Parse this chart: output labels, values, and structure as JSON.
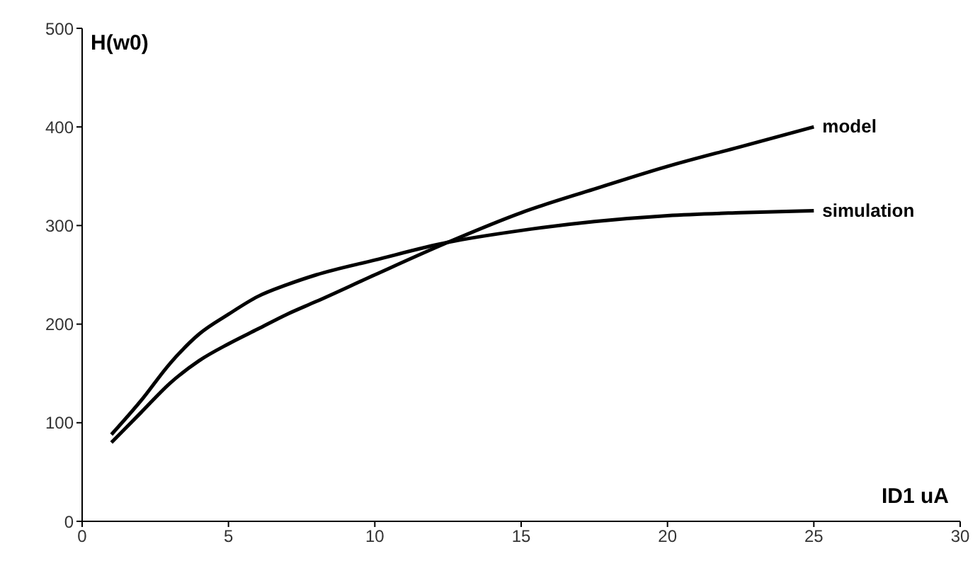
{
  "chart_data": {
    "type": "line",
    "xlabel": "ID1 uA",
    "ylabel": "H(w0)",
    "xlim": [
      0,
      30
    ],
    "xticks": [
      0,
      5,
      10,
      15,
      20,
      25,
      30
    ],
    "ylim": [
      0,
      500
    ],
    "yticks": [
      0,
      100,
      200,
      300,
      400,
      500
    ],
    "grid": false,
    "legend": false,
    "marker": "none",
    "line_style": "solid",
    "series": [
      {
        "name": "model",
        "color": "#000000",
        "x": [
          1,
          2,
          3,
          4,
          5,
          6,
          7,
          8,
          10,
          12.5,
          15,
          17.5,
          20,
          22.5,
          25
        ],
        "values": [
          80,
          110,
          140,
          163,
          180,
          195,
          210,
          223,
          250,
          283,
          313,
          337,
          360,
          380,
          400
        ]
      },
      {
        "name": "simulation",
        "color": "#000000",
        "x": [
          1,
          2,
          3,
          4,
          5,
          6,
          7,
          8,
          10,
          12.5,
          15,
          17.5,
          20,
          22.5,
          25
        ],
        "values": [
          88,
          122,
          160,
          190,
          210,
          228,
          240,
          250,
          265,
          283,
          295,
          304,
          310,
          313,
          315
        ]
      }
    ]
  }
}
